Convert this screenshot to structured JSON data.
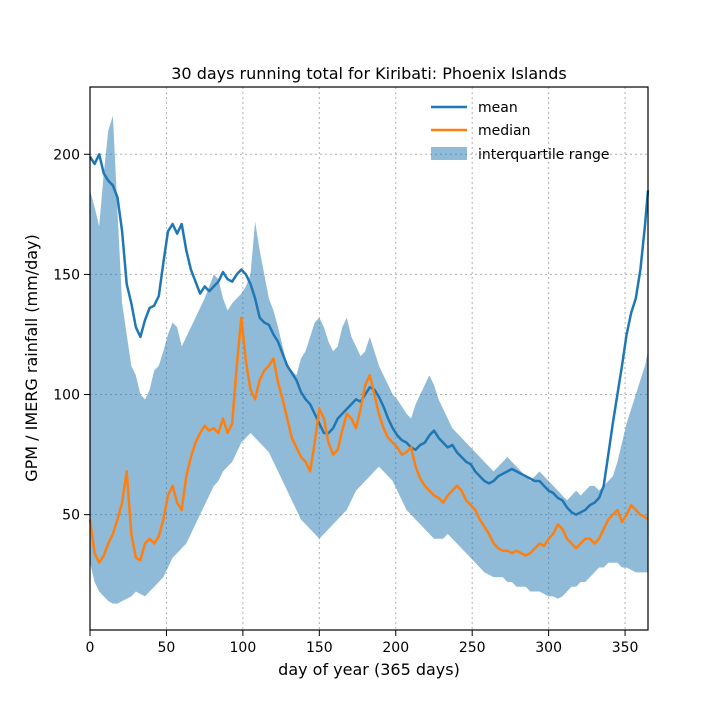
{
  "chart_data": {
    "type": "line",
    "title": "30 days running total for Kiribati: Phoenix Islands",
    "xlabel": "day of year (365 days)",
    "ylabel": "GPM / IMERG rainfall (mm/day)",
    "xlim": [
      0,
      365
    ],
    "ylim": [
      2,
      228
    ],
    "grid": true,
    "legend_position": "top-right",
    "x_ticks": [
      0,
      50,
      100,
      150,
      200,
      250,
      300,
      350
    ],
    "y_ticks": [
      50,
      100,
      150,
      200
    ],
    "colors": {
      "mean": "#1f77b4",
      "median": "#ff7f0e",
      "iqr": "#1f77b4"
    },
    "legend": [
      {
        "key": "mean",
        "label": "mean"
      },
      {
        "key": "median",
        "label": "median"
      },
      {
        "key": "iqr",
        "label": "interquartile range"
      }
    ],
    "series": [
      {
        "name": "mean",
        "x": [
          0,
          3,
          6,
          9,
          12,
          15,
          18,
          21,
          24,
          27,
          30,
          33,
          36,
          39,
          42,
          45,
          48,
          51,
          54,
          57,
          60,
          63,
          66,
          69,
          72,
          75,
          78,
          81,
          84,
          87,
          90,
          93,
          96,
          99,
          102,
          105,
          108,
          111,
          114,
          117,
          120,
          123,
          126,
          129,
          132,
          135,
          138,
          141,
          144,
          147,
          150,
          153,
          156,
          159,
          162,
          165,
          168,
          171,
          174,
          177,
          180,
          183,
          186,
          189,
          192,
          195,
          198,
          201,
          204,
          207,
          210,
          213,
          216,
          219,
          222,
          225,
          228,
          231,
          234,
          237,
          240,
          243,
          246,
          249,
          252,
          255,
          258,
          261,
          264,
          267,
          270,
          273,
          276,
          279,
          282,
          285,
          288,
          291,
          294,
          297,
          300,
          303,
          306,
          309,
          312,
          315,
          318,
          321,
          324,
          327,
          330,
          333,
          336,
          339,
          342,
          345,
          348,
          351,
          354,
          357,
          360,
          363,
          365
        ],
        "values": [
          199,
          196,
          200,
          192,
          189,
          187,
          182,
          168,
          146,
          138,
          128,
          124,
          131,
          136,
          137,
          141,
          155,
          168,
          171,
          167,
          171,
          160,
          152,
          147,
          142,
          145,
          143,
          145,
          147,
          151,
          148,
          147,
          150,
          152,
          150,
          146,
          140,
          132,
          130,
          129,
          125,
          122,
          117,
          112,
          109,
          106,
          101,
          98,
          96,
          92,
          88,
          84,
          84,
          86,
          90,
          92,
          94,
          96,
          98,
          97,
          100,
          103,
          102,
          99,
          95,
          90,
          86,
          83,
          81,
          80,
          78,
          77,
          79,
          80,
          83,
          85,
          82,
          80,
          78,
          79,
          76,
          74,
          72,
          71,
          68,
          66,
          64,
          63,
          64,
          66,
          67,
          68,
          69,
          68,
          67,
          66,
          65,
          64,
          64,
          62,
          60,
          59,
          57,
          56,
          53,
          51,
          50,
          51,
          52,
          54,
          55,
          57,
          62,
          75,
          88,
          100,
          112,
          125,
          134,
          140,
          152,
          170,
          185
        ]
      },
      {
        "name": "median",
        "x": [
          0,
          3,
          6,
          9,
          12,
          15,
          18,
          21,
          24,
          27,
          30,
          33,
          36,
          39,
          42,
          45,
          48,
          51,
          54,
          57,
          60,
          63,
          66,
          69,
          72,
          75,
          78,
          81,
          84,
          87,
          90,
          93,
          96,
          99,
          102,
          105,
          108,
          111,
          114,
          117,
          120,
          123,
          126,
          129,
          132,
          135,
          138,
          141,
          144,
          147,
          150,
          153,
          156,
          159,
          162,
          165,
          168,
          171,
          174,
          177,
          180,
          183,
          186,
          189,
          192,
          195,
          198,
          201,
          204,
          207,
          210,
          213,
          216,
          219,
          222,
          225,
          228,
          231,
          234,
          237,
          240,
          243,
          246,
          249,
          252,
          255,
          258,
          261,
          264,
          267,
          270,
          273,
          276,
          279,
          282,
          285,
          288,
          291,
          294,
          297,
          300,
          303,
          306,
          309,
          312,
          315,
          318,
          321,
          324,
          327,
          330,
          333,
          336,
          339,
          342,
          345,
          348,
          351,
          354,
          357,
          360,
          363,
          365
        ],
        "values": [
          48,
          34,
          30,
          33,
          38,
          42,
          48,
          55,
          68,
          42,
          32,
          31,
          38,
          40,
          38,
          41,
          48,
          58,
          62,
          55,
          52,
          66,
          74,
          80,
          84,
          87,
          85,
          86,
          84,
          90,
          84,
          88,
          112,
          132,
          114,
          102,
          98,
          106,
          110,
          112,
          115,
          105,
          98,
          90,
          82,
          78,
          74,
          72,
          68,
          80,
          94,
          90,
          80,
          75,
          77,
          85,
          92,
          90,
          86,
          94,
          104,
          108,
          100,
          92,
          86,
          82,
          80,
          78,
          75,
          76,
          78,
          70,
          65,
          62,
          60,
          58,
          57,
          55,
          58,
          60,
          62,
          60,
          56,
          54,
          52,
          48,
          45,
          42,
          38,
          36,
          35,
          35,
          34,
          35,
          34,
          33,
          34,
          36,
          38,
          37,
          40,
          42,
          46,
          44,
          40,
          38,
          36,
          38,
          40,
          40,
          38,
          40,
          44,
          48,
          50,
          52,
          47,
          50,
          54,
          52,
          50,
          49,
          48
        ]
      },
      {
        "name": "interquartile range",
        "x": [
          0,
          3,
          6,
          9,
          12,
          15,
          18,
          21,
          24,
          27,
          30,
          33,
          36,
          39,
          42,
          45,
          48,
          51,
          54,
          57,
          60,
          63,
          66,
          69,
          72,
          75,
          78,
          81,
          84,
          87,
          90,
          93,
          96,
          99,
          102,
          105,
          108,
          111,
          114,
          117,
          120,
          123,
          126,
          129,
          132,
          135,
          138,
          141,
          144,
          147,
          150,
          153,
          156,
          159,
          162,
          165,
          168,
          171,
          174,
          177,
          180,
          183,
          186,
          189,
          192,
          195,
          198,
          201,
          204,
          207,
          210,
          213,
          216,
          219,
          222,
          225,
          228,
          231,
          234,
          237,
          240,
          243,
          246,
          249,
          252,
          255,
          258,
          261,
          264,
          267,
          270,
          273,
          276,
          279,
          282,
          285,
          288,
          291,
          294,
          297,
          300,
          303,
          306,
          309,
          312,
          315,
          318,
          321,
          324,
          327,
          330,
          333,
          336,
          339,
          342,
          345,
          348,
          351,
          354,
          357,
          360,
          363,
          365
        ],
        "low": [
          30,
          22,
          18,
          16,
          14,
          13,
          13,
          14,
          15,
          16,
          18,
          17,
          16,
          18,
          20,
          22,
          24,
          28,
          32,
          34,
          36,
          38,
          42,
          46,
          50,
          54,
          58,
          62,
          64,
          68,
          70,
          72,
          76,
          80,
          82,
          84,
          82,
          80,
          78,
          76,
          72,
          68,
          64,
          60,
          56,
          52,
          48,
          46,
          44,
          42,
          40,
          42,
          44,
          46,
          48,
          50,
          52,
          56,
          60,
          62,
          64,
          66,
          68,
          70,
          68,
          66,
          64,
          60,
          56,
          52,
          50,
          48,
          46,
          44,
          42,
          40,
          40,
          40,
          42,
          40,
          38,
          36,
          34,
          32,
          30,
          28,
          26,
          25,
          24,
          24,
          24,
          22,
          22,
          20,
          20,
          20,
          18,
          18,
          18,
          17,
          16,
          16,
          15,
          16,
          18,
          20,
          20,
          22,
          22,
          24,
          26,
          28,
          28,
          30,
          30,
          30,
          28,
          28,
          27,
          26,
          26,
          26,
          26
        ],
        "high": [
          185,
          178,
          170,
          192,
          210,
          216,
          176,
          138,
          125,
          112,
          108,
          100,
          98,
          102,
          110,
          112,
          118,
          125,
          130,
          128,
          120,
          124,
          128,
          132,
          136,
          140,
          145,
          150,
          148,
          140,
          135,
          138,
          140,
          142,
          145,
          150,
          172,
          160,
          150,
          140,
          135,
          128,
          120,
          112,
          110,
          108,
          115,
          118,
          124,
          130,
          132,
          128,
          122,
          118,
          120,
          128,
          132,
          124,
          120,
          116,
          118,
          124,
          118,
          112,
          108,
          104,
          100,
          98,
          95,
          92,
          90,
          96,
          100,
          104,
          108,
          104,
          98,
          94,
          90,
          86,
          84,
          82,
          80,
          78,
          76,
          74,
          72,
          70,
          68,
          70,
          72,
          74,
          72,
          70,
          68,
          66,
          64,
          66,
          68,
          66,
          64,
          62,
          60,
          58,
          56,
          58,
          60,
          58,
          60,
          62,
          62,
          60,
          62,
          64,
          66,
          72,
          80,
          88,
          94,
          100,
          106,
          112,
          118
        ]
      }
    ]
  }
}
